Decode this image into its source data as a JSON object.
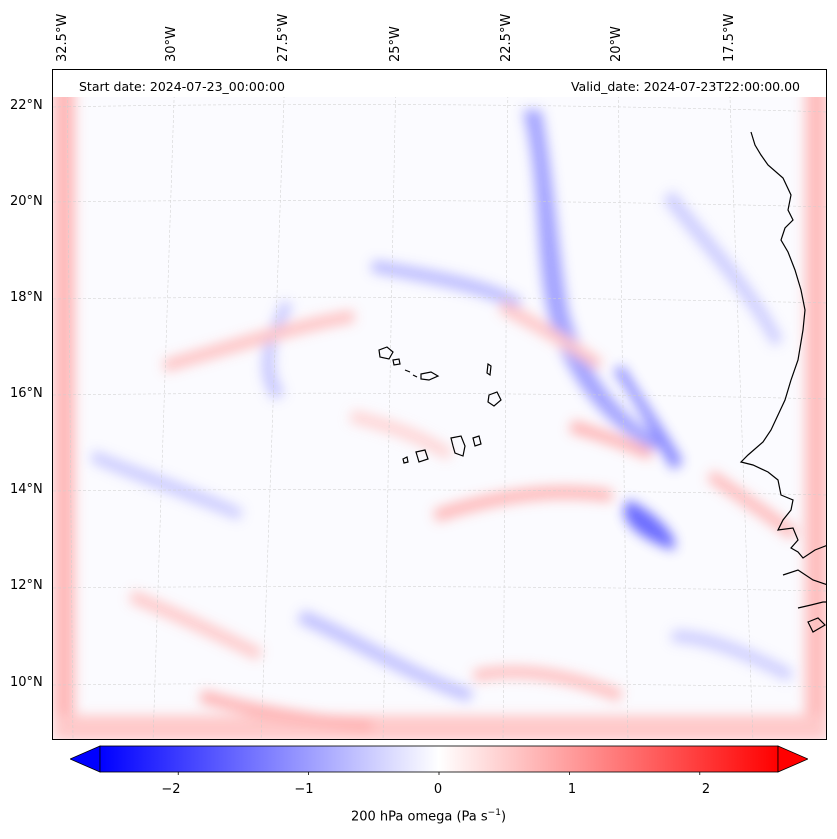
{
  "header": {
    "start_date": "Start date: 2024-07-23_00:00:00",
    "valid_date": "Valid_date: 2024-07-23T22:00:00.00"
  },
  "axes": {
    "lon_labels": [
      "32.5°W",
      "30°W",
      "27.5°W",
      "25°W",
      "22.5°W",
      "20°W",
      "17.5°W"
    ],
    "lat_labels": [
      "22°N",
      "20°N",
      "18°N",
      "16°N",
      "14°N",
      "12°N",
      "10°N"
    ],
    "projection_gridlines": true
  },
  "colorbar": {
    "label_prefix": "200 hPa omega (Pa s",
    "label_exponent": "−1",
    "label_suffix": ")",
    "ticks": [
      "−2",
      "−1",
      "0",
      "1",
      "2"
    ],
    "tick_values": [
      -2,
      -1,
      0,
      1,
      2
    ],
    "range": [
      -2.6,
      2.6
    ],
    "extend": "both",
    "colormap": "bwr",
    "colors": {
      "negative": "#0000ff",
      "zero": "#ffffff",
      "positive": "#ff0000"
    }
  },
  "legend_features": [
    "coastline",
    "Cape Verde islands",
    "West African coast"
  ]
}
